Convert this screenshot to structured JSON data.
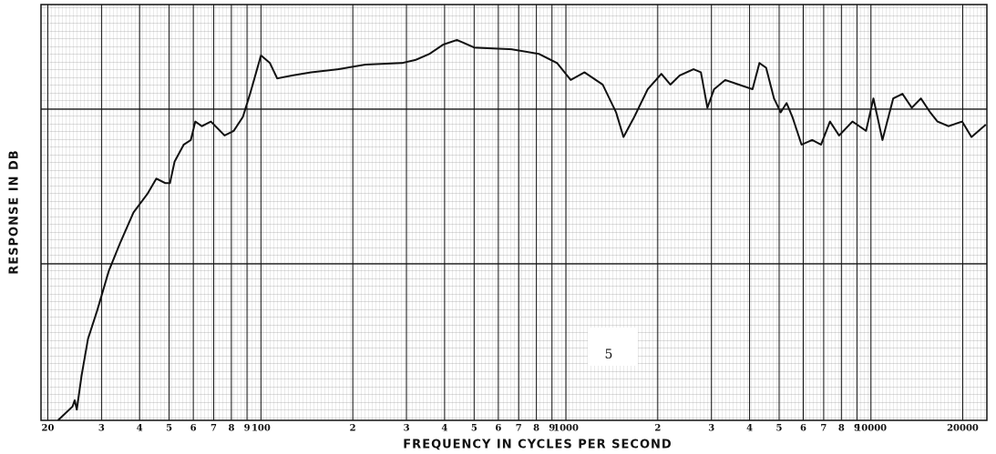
{
  "chart_data": {
    "type": "line",
    "xlabel": "FREQUENCY IN CYCLES PER SECOND",
    "ylabel": "RESPONSE IN DB",
    "annotation": "5",
    "log_x": true,
    "grid": true,
    "color": "#111111",
    "xlim": [
      19,
      24000
    ],
    "ylim": [
      0,
      27
    ],
    "xticks": [
      {
        "value": 20,
        "label": "20"
      },
      {
        "value": 30,
        "label": "3"
      },
      {
        "value": 40,
        "label": "4"
      },
      {
        "value": 50,
        "label": "5"
      },
      {
        "value": 60,
        "label": "6"
      },
      {
        "value": 70,
        "label": "7"
      },
      {
        "value": 80,
        "label": "8"
      },
      {
        "value": 90,
        "label": "9"
      },
      100,
      {
        "value": 200,
        "label": "2"
      },
      {
        "value": 300,
        "label": "3"
      },
      {
        "value": 400,
        "label": "4"
      },
      {
        "value": 500,
        "label": "5"
      },
      {
        "value": 600,
        "label": "6"
      },
      {
        "value": 700,
        "label": "7"
      },
      {
        "value": 800,
        "label": "8"
      },
      {
        "value": 900,
        "label": "9"
      },
      1000,
      {
        "value": 2000,
        "label": "2"
      },
      {
        "value": 3000,
        "label": "3"
      },
      {
        "value": 4000,
        "label": "4"
      },
      {
        "value": 5000,
        "label": "5"
      },
      {
        "value": 6000,
        "label": "6"
      },
      {
        "value": 7000,
        "label": "7"
      },
      {
        "value": 8000,
        "label": "8"
      },
      {
        "value": 9000,
        "label": "9"
      },
      10000,
      20000
    ],
    "x": [
      21.6,
      24.1,
      24.5,
      24.9,
      25.8,
      27.1,
      29.0,
      31.7,
      34.5,
      38.2,
      42.4,
      45.4,
      48.6,
      50.3,
      52.1,
      55.8,
      58.9,
      60.9,
      64.0,
      68.5,
      76.0,
      81.4,
      87.2,
      92.1,
      100,
      107,
      113,
      127,
      146,
      179,
      220,
      290,
      321,
      357,
      396,
      439,
      502,
      662,
      815,
      935,
      1037,
      1150,
      1320,
      1460,
      1544,
      1674,
      1854,
      2056,
      2200,
      2360,
      2620,
      2770,
      2910,
      3060,
      3330,
      3690,
      4090,
      4310,
      4530,
      4810,
      5060,
      5290,
      5530,
      5920,
      6420,
      6860,
      7340,
      7860,
      8700,
      9640,
      10190,
      10910,
      11830,
      12690,
      13610,
      14580,
      15640,
      16530,
      17960,
      19920,
      21360,
      23800
    ],
    "series": [
      {
        "name": "Response",
        "color": "#111111",
        "values": [
          0,
          0.9,
          1.3,
          0.7,
          2.9,
          5.3,
          7.1,
          9.7,
          11.5,
          13.5,
          14.7,
          15.7,
          15.4,
          15.4,
          16.8,
          17.9,
          18.2,
          19.4,
          19.1,
          19.4,
          18.5,
          18.8,
          19.7,
          21.2,
          23.7,
          23.2,
          22.2,
          22.4,
          22.6,
          22.8,
          23.1,
          23.2,
          23.4,
          23.8,
          24.4,
          24.7,
          24.2,
          24.1,
          23.8,
          23.2,
          22.1,
          22.6,
          21.8,
          20.0,
          18.4,
          19.7,
          21.5,
          22.5,
          21.8,
          22.4,
          22.8,
          22.6,
          20.3,
          21.5,
          22.1,
          21.8,
          21.5,
          23.2,
          22.9,
          20.9,
          20.0,
          20.6,
          19.7,
          17.9,
          18.2,
          17.9,
          19.4,
          18.5,
          19.4,
          18.8,
          20.9,
          18.2,
          20.9,
          21.2,
          20.3,
          20.9,
          20.0,
          19.4,
          19.1,
          19.4,
          18.4,
          19.2
        ]
      }
    ]
  }
}
